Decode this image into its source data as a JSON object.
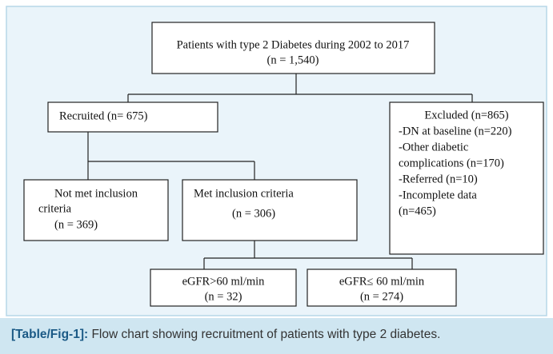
{
  "nodes": [
    {
      "lines": [
        "Patients with type 2 Diabetes during 2002 to 2017",
        "(n = 1,540)"
      ]
    },
    {
      "lines": [
        "Recruited (n= 675)"
      ]
    },
    {
      "lines": [
        "Excluded (n=865)",
        "-DN at baseline (n=220)",
        "-Other diabetic",
        "complications (n=170)",
        "-Referred (n=10)",
        "-Incomplete data",
        "(n=465)"
      ]
    },
    {
      "lines": [
        "Not met inclusion",
        "criteria",
        "(n = 369)"
      ]
    },
    {
      "lines": [
        "Met inclusion criteria",
        "(n = 306)"
      ]
    },
    {
      "lines": [
        "eGFR>60 ml/min",
        "(n = 32)"
      ]
    },
    {
      "lines": [
        "eGFR≤ 60 ml/min",
        "(n = 274)"
      ]
    }
  ],
  "caption": {
    "label": "[Table/Fig-1]:",
    "text": "Flow chart showing recruitment of patients with type 2 diabetes."
  }
}
